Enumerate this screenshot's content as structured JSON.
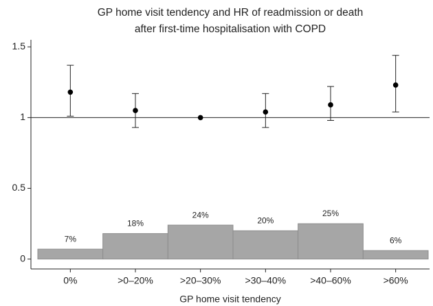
{
  "chart_data": {
    "type": "errorbar",
    "title": [
      "GP home visit tendency and HR of readmission or death",
      "after first-time hospitalisation with COPD"
    ],
    "x_label": "GP home visit tendency",
    "categories": [
      "0%",
      ">0–20%",
      ">20–30%",
      ">30–40%",
      ">40–60%",
      ">60%"
    ],
    "values": [
      1.18,
      1.05,
      1.0,
      1.04,
      1.09,
      1.23
    ],
    "lower": [
      1.01,
      0.93,
      null,
      0.93,
      0.98,
      1.04
    ],
    "upper": [
      1.37,
      1.17,
      null,
      1.17,
      1.22,
      1.44
    ],
    "color": "#000000",
    "reference_line": 1,
    "bars": {
      "values": [
        0.07,
        0.18,
        0.24,
        0.2,
        0.25,
        0.06
      ],
      "value_labels": [
        "7%",
        "18%",
        "24%",
        "20%",
        "25%",
        "6%"
      ],
      "color": "#a6a6a6",
      "edgecolor": "#8c8c8c"
    },
    "ylim": [
      -0.07,
      1.55
    ],
    "yticks": [
      0,
      0.5,
      1,
      1.5
    ]
  }
}
